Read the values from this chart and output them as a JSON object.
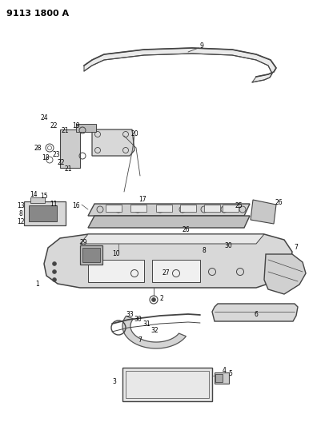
{
  "title": "9113 1800 A",
  "bg_color": "#ffffff",
  "line_color": "#444444",
  "text_color": "#000000",
  "title_fontsize": 8,
  "label_fontsize": 5.5,
  "fig_width": 4.11,
  "fig_height": 5.33,
  "dpi": 100
}
